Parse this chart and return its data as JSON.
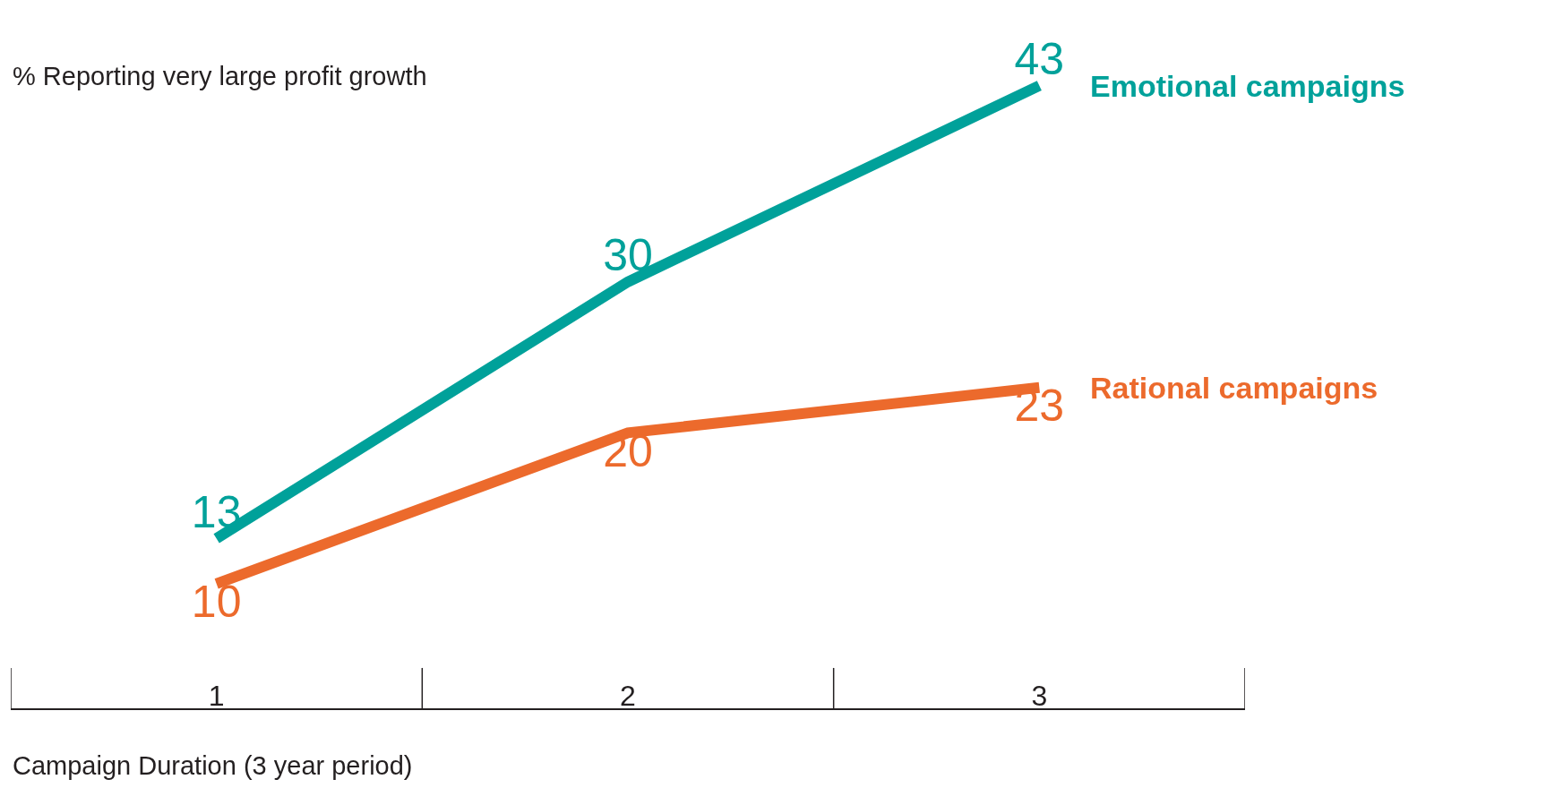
{
  "chart_data": {
    "type": "line",
    "ylabel": "% Reporting very large profit growth",
    "xlabel": "Campaign Duration (3 year period)",
    "categories": [
      "1",
      "2",
      "3"
    ],
    "series": [
      {
        "name": "Emotional campaigns",
        "color": "#00a19a",
        "values": [
          13,
          30,
          43
        ]
      },
      {
        "name": "Rational campaigns",
        "color": "#ec6a2c",
        "values": [
          10,
          20,
          23
        ]
      }
    ],
    "data_labels": true,
    "legend": false,
    "grid": false,
    "marker": "none",
    "line_style": "solid"
  }
}
